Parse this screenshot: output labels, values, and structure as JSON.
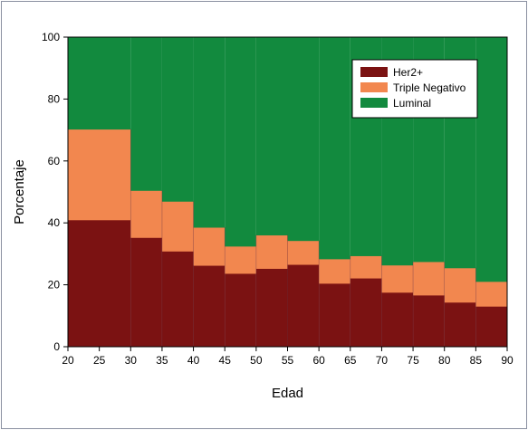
{
  "chart_data": {
    "type": "bar",
    "stacked": true,
    "xlabel": "Edad",
    "ylabel": "Porcentaje",
    "xlim": [
      20,
      90
    ],
    "ylim": [
      0,
      100
    ],
    "xticks": [
      20,
      25,
      30,
      35,
      40,
      45,
      50,
      55,
      60,
      65,
      70,
      75,
      80,
      85,
      90
    ],
    "yticks": [
      0,
      20,
      40,
      60,
      80,
      100
    ],
    "bins": [
      {
        "from": 20,
        "to": 30
      },
      {
        "from": 30,
        "to": 35
      },
      {
        "from": 35,
        "to": 40
      },
      {
        "from": 40,
        "to": 45
      },
      {
        "from": 45,
        "to": 50
      },
      {
        "from": 50,
        "to": 55
      },
      {
        "from": 55,
        "to": 60
      },
      {
        "from": 60,
        "to": 65
      },
      {
        "from": 65,
        "to": 70
      },
      {
        "from": 70,
        "to": 75
      },
      {
        "from": 75,
        "to": 80
      },
      {
        "from": 80,
        "to": 85
      },
      {
        "from": 85,
        "to": 90
      }
    ],
    "series": [
      {
        "name": "Her2+",
        "color": "#7b1212",
        "values": [
          41,
          35.3,
          30.9,
          26.3,
          23.7,
          25.3,
          26.6,
          20.5,
          22.2,
          17.6,
          16.7,
          14.4,
          13.1
        ]
      },
      {
        "name": "Triple Negativo",
        "color": "#f2874f",
        "values": [
          29.3,
          15.2,
          16.1,
          12.3,
          8.8,
          10.8,
          7.7,
          7.9,
          7.2,
          8.8,
          10.8,
          11.1,
          8.0
        ]
      },
      {
        "name": "Luminal",
        "color": "#128a3e",
        "values": [
          29.7,
          49.5,
          53.0,
          61.4,
          67.5,
          63.9,
          65.7,
          71.6,
          70.6,
          73.6,
          72.5,
          74.5,
          78.9
        ]
      }
    ],
    "legend_position": "top-right",
    "grid": false
  }
}
